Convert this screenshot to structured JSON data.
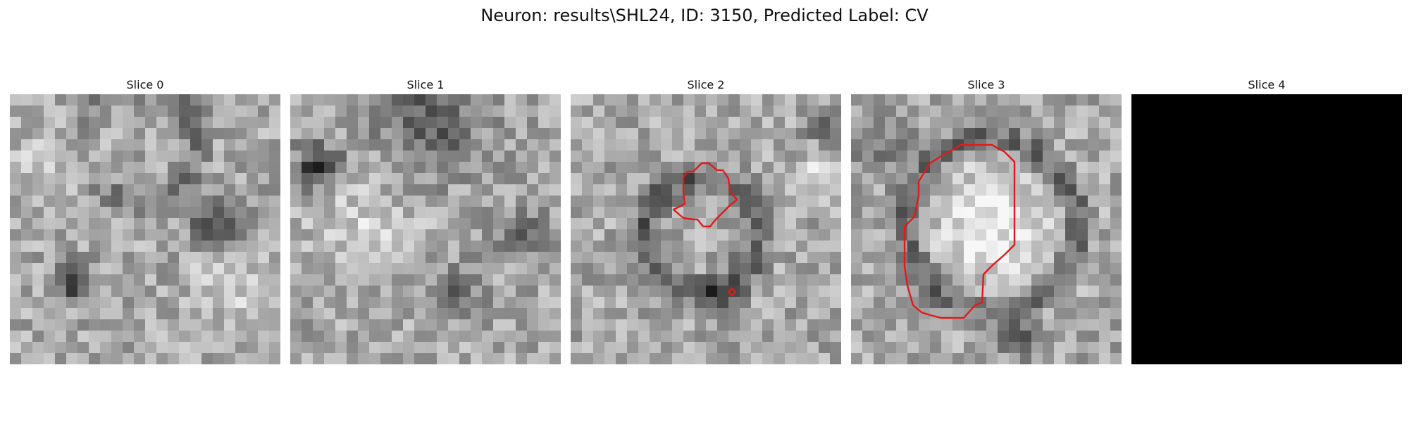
{
  "figure": {
    "title": "Neuron: results\\SHL24, ID: 3150, Predicted Label: CV",
    "slices": [
      {
        "title": "Slice 0"
      },
      {
        "title": "Slice 1"
      },
      {
        "title": "Slice 2"
      },
      {
        "title": "Slice 3"
      },
      {
        "title": "Slice 4"
      }
    ],
    "contour_color": "#e01a1a",
    "blank_slice_color": "#000000"
  }
}
